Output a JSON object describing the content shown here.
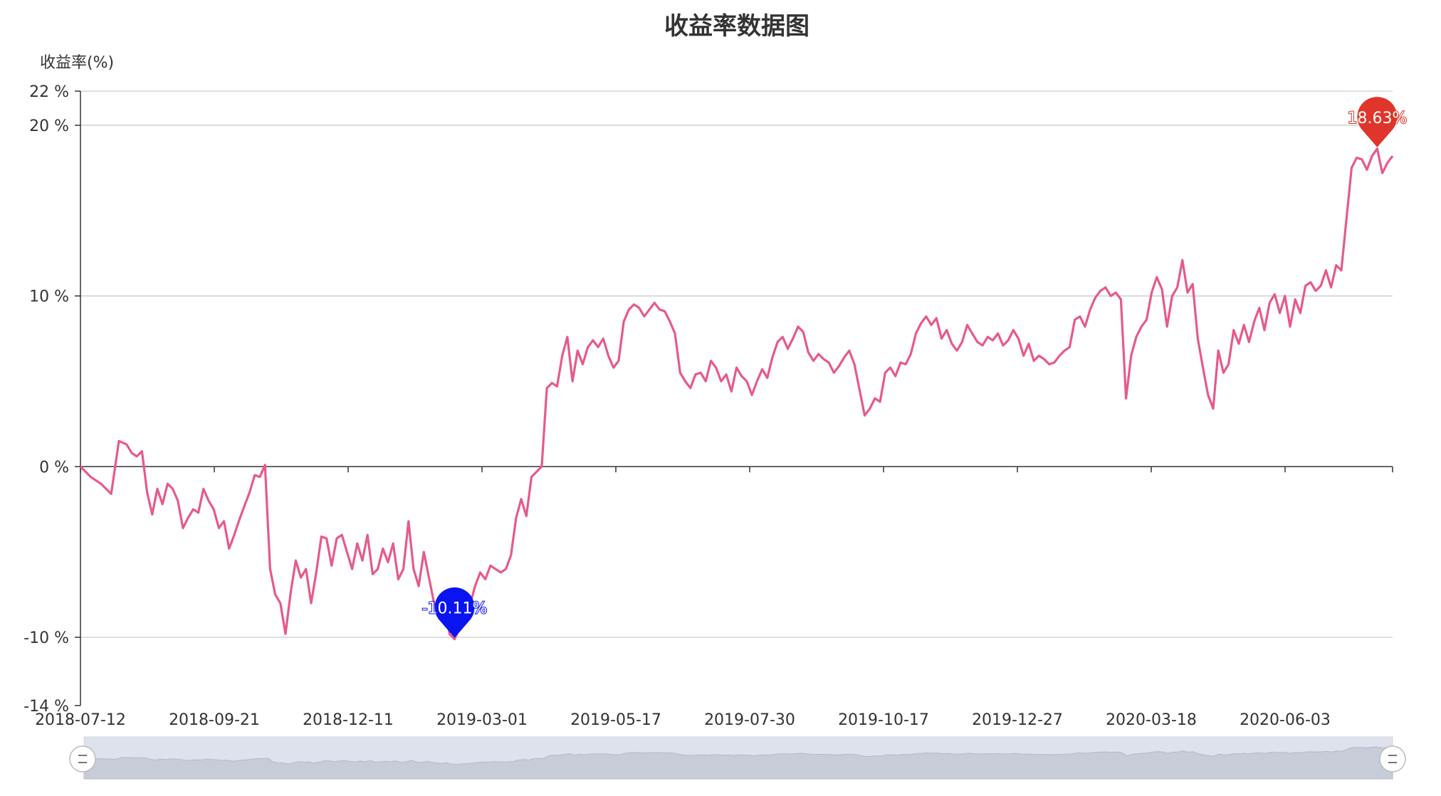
{
  "chart_data": {
    "type": "line",
    "title": "收益率数据图",
    "ylabel": "收益率(%)",
    "xlabel": "",
    "yticks": [
      "22 %",
      "20 %",
      "10 %",
      "0 %",
      "-10 %",
      "-14 %"
    ],
    "ytick_values": [
      22,
      20,
      10,
      0,
      -10,
      -14
    ],
    "ylim": [
      -14,
      22
    ],
    "x_tick_labels": [
      "2018-07-12",
      "2018-09-21",
      "2018-12-11",
      "2019-03-01",
      "2019-05-17",
      "2019-07-30",
      "2019-10-17",
      "2019-12-27",
      "2020-03-18",
      "2020-06-03"
    ],
    "grid": true,
    "series": [
      {
        "color": "#e65a88",
        "points": [
          [
            0,
            0.0
          ],
          [
            2,
            -0.6
          ],
          [
            4,
            -1.0
          ],
          [
            6,
            -1.6
          ],
          [
            7.5,
            1.5
          ],
          [
            9,
            1.3
          ],
          [
            10,
            0.8
          ],
          [
            11,
            0.6
          ],
          [
            12,
            0.9
          ],
          [
            13,
            -1.5
          ],
          [
            14,
            -2.8
          ],
          [
            15,
            -1.3
          ],
          [
            16,
            -2.2
          ],
          [
            17,
            -1.0
          ],
          [
            18,
            -1.3
          ],
          [
            19,
            -2.0
          ],
          [
            20,
            -3.6
          ],
          [
            21,
            -3.0
          ],
          [
            22,
            -2.5
          ],
          [
            23,
            -2.7
          ],
          [
            24,
            -1.3
          ],
          [
            25,
            -2.0
          ],
          [
            26,
            -2.5
          ],
          [
            27,
            -3.6
          ],
          [
            28,
            -3.2
          ],
          [
            29,
            -4.8
          ],
          [
            30,
            -4.0
          ],
          [
            31,
            -3.1
          ],
          [
            32,
            -2.3
          ],
          [
            33,
            -1.5
          ],
          [
            34,
            -0.5
          ],
          [
            35,
            -0.6
          ],
          [
            36,
            0.1
          ],
          [
            37,
            -6.0
          ],
          [
            38,
            -7.5
          ],
          [
            39,
            -8.0
          ],
          [
            40,
            -9.8
          ],
          [
            41,
            -7.4
          ],
          [
            42,
            -5.5
          ],
          [
            43,
            -6.5
          ],
          [
            44,
            -6.0
          ],
          [
            45,
            -8.0
          ],
          [
            46,
            -6.2
          ],
          [
            47,
            -4.1
          ],
          [
            48,
            -4.2
          ],
          [
            49,
            -5.8
          ],
          [
            50,
            -4.2
          ],
          [
            51,
            -4.0
          ],
          [
            52,
            -5.0
          ],
          [
            53,
            -6.0
          ],
          [
            54,
            -4.5
          ],
          [
            55,
            -5.5
          ],
          [
            56,
            -4.0
          ],
          [
            57,
            -6.3
          ],
          [
            58,
            -6.0
          ],
          [
            59,
            -4.8
          ],
          [
            60,
            -5.6
          ],
          [
            61,
            -4.5
          ],
          [
            62,
            -6.6
          ],
          [
            63,
            -6.0
          ],
          [
            64,
            -3.2
          ],
          [
            65,
            -6.0
          ],
          [
            66,
            -7.0
          ],
          [
            67,
            -5.0
          ],
          [
            68,
            -6.5
          ],
          [
            69,
            -8.0
          ],
          [
            70,
            -8.4
          ],
          [
            71,
            -7.5
          ],
          [
            72,
            -9.8
          ],
          [
            73,
            -10.11
          ],
          [
            74,
            -9.4
          ],
          [
            75,
            -8.6
          ],
          [
            76,
            -8.1
          ],
          [
            77,
            -7.0
          ],
          [
            78,
            -6.2
          ],
          [
            79,
            -6.6
          ],
          [
            80,
            -5.8
          ],
          [
            81,
            -6.0
          ],
          [
            82,
            -6.2
          ],
          [
            83,
            -6.0
          ],
          [
            84,
            -5.2
          ],
          [
            85,
            -3.0
          ],
          [
            86,
            -1.9
          ],
          [
            87,
            -2.9
          ],
          [
            88,
            -0.6
          ],
          [
            89,
            -0.3
          ],
          [
            90,
            0.0
          ],
          [
            91,
            4.6
          ],
          [
            92,
            4.9
          ],
          [
            93,
            4.7
          ],
          [
            94,
            6.5
          ],
          [
            95,
            7.6
          ],
          [
            96,
            5.0
          ],
          [
            97,
            6.8
          ],
          [
            98,
            6.0
          ],
          [
            99,
            7.0
          ],
          [
            100,
            7.4
          ],
          [
            101,
            7.0
          ],
          [
            102,
            7.5
          ],
          [
            103,
            6.5
          ],
          [
            104,
            5.8
          ],
          [
            105,
            6.2
          ],
          [
            106,
            8.5
          ],
          [
            107,
            9.2
          ],
          [
            108,
            9.5
          ],
          [
            109,
            9.3
          ],
          [
            110,
            8.8
          ],
          [
            111,
            9.2
          ],
          [
            112,
            9.6
          ],
          [
            113,
            9.2
          ],
          [
            114,
            9.1
          ],
          [
            115,
            8.5
          ],
          [
            116,
            7.8
          ],
          [
            117,
            5.5
          ],
          [
            118,
            5.0
          ],
          [
            119,
            4.6
          ],
          [
            120,
            5.4
          ],
          [
            121,
            5.5
          ],
          [
            122,
            5.0
          ],
          [
            123,
            6.2
          ],
          [
            124,
            5.8
          ],
          [
            125,
            5.0
          ],
          [
            126,
            5.4
          ],
          [
            127,
            4.4
          ],
          [
            128,
            5.8
          ],
          [
            129,
            5.3
          ],
          [
            130,
            5.0
          ],
          [
            131,
            4.2
          ],
          [
            132,
            5.0
          ],
          [
            133,
            5.7
          ],
          [
            134,
            5.2
          ],
          [
            135,
            6.4
          ],
          [
            136,
            7.3
          ],
          [
            137,
            7.6
          ],
          [
            138,
            6.9
          ],
          [
            139,
            7.5
          ],
          [
            140,
            8.2
          ],
          [
            141,
            7.9
          ],
          [
            142,
            6.7
          ],
          [
            143,
            6.2
          ],
          [
            144,
            6.6
          ],
          [
            145,
            6.3
          ],
          [
            146,
            6.1
          ],
          [
            147,
            5.5
          ],
          [
            148,
            5.9
          ],
          [
            149,
            6.4
          ],
          [
            150,
            6.8
          ],
          [
            151,
            6.0
          ],
          [
            152,
            4.5
          ],
          [
            153,
            3.0
          ],
          [
            154,
            3.4
          ],
          [
            155,
            4.0
          ],
          [
            156,
            3.8
          ],
          [
            157,
            5.5
          ],
          [
            158,
            5.8
          ],
          [
            159,
            5.3
          ],
          [
            160,
            6.1
          ],
          [
            161,
            6.0
          ],
          [
            162,
            6.6
          ],
          [
            163,
            7.8
          ],
          [
            164,
            8.4
          ],
          [
            165,
            8.8
          ],
          [
            166,
            8.3
          ],
          [
            167,
            8.7
          ],
          [
            168,
            7.5
          ],
          [
            169,
            8.0
          ],
          [
            170,
            7.2
          ],
          [
            171,
            6.8
          ],
          [
            172,
            7.3
          ],
          [
            173,
            8.3
          ],
          [
            174,
            7.8
          ],
          [
            175,
            7.3
          ],
          [
            176,
            7.1
          ],
          [
            177,
            7.6
          ],
          [
            178,
            7.4
          ],
          [
            179,
            7.8
          ],
          [
            180,
            7.1
          ],
          [
            181,
            7.4
          ],
          [
            182,
            8.0
          ],
          [
            183,
            7.5
          ],
          [
            184,
            6.5
          ],
          [
            185,
            7.2
          ],
          [
            186,
            6.2
          ],
          [
            187,
            6.5
          ],
          [
            188,
            6.3
          ],
          [
            189,
            6.0
          ],
          [
            190,
            6.1
          ],
          [
            191,
            6.5
          ],
          [
            192,
            6.8
          ],
          [
            193,
            7.0
          ],
          [
            194,
            8.6
          ],
          [
            195,
            8.8
          ],
          [
            196,
            8.2
          ],
          [
            197,
            9.2
          ],
          [
            198,
            9.9
          ],
          [
            199,
            10.3
          ],
          [
            200,
            10.5
          ],
          [
            201,
            10.0
          ],
          [
            202,
            10.2
          ],
          [
            203,
            9.8
          ],
          [
            204,
            4.0
          ],
          [
            205,
            6.5
          ],
          [
            206,
            7.6
          ],
          [
            207,
            8.2
          ],
          [
            208,
            8.6
          ],
          [
            209,
            10.2
          ],
          [
            210,
            11.1
          ],
          [
            211,
            10.4
          ],
          [
            212,
            8.2
          ],
          [
            213,
            10.0
          ],
          [
            214,
            10.5
          ],
          [
            215,
            12.1
          ],
          [
            216,
            10.2
          ],
          [
            217,
            10.7
          ],
          [
            218,
            7.5
          ],
          [
            219,
            5.8
          ],
          [
            220,
            4.2
          ],
          [
            221,
            3.4
          ],
          [
            222,
            6.8
          ],
          [
            223,
            5.5
          ],
          [
            224,
            6.0
          ],
          [
            225,
            8.0
          ],
          [
            226,
            7.2
          ],
          [
            227,
            8.3
          ],
          [
            228,
            7.3
          ],
          [
            229,
            8.5
          ],
          [
            230,
            9.3
          ],
          [
            231,
            8.0
          ],
          [
            232,
            9.6
          ],
          [
            233,
            10.1
          ],
          [
            234,
            9.0
          ],
          [
            235,
            10.0
          ],
          [
            236,
            8.2
          ],
          [
            237,
            9.8
          ],
          [
            238,
            9.0
          ],
          [
            239,
            10.6
          ],
          [
            240,
            10.8
          ],
          [
            241,
            10.3
          ],
          [
            242,
            10.6
          ],
          [
            243,
            11.5
          ],
          [
            244,
            10.5
          ],
          [
            245,
            11.8
          ],
          [
            246,
            11.5
          ],
          [
            247,
            14.5
          ],
          [
            248,
            17.5
          ],
          [
            249,
            18.1
          ],
          [
            250,
            18.0
          ],
          [
            251,
            17.4
          ],
          [
            252,
            18.2
          ],
          [
            253,
            18.63
          ],
          [
            254,
            17.2
          ],
          [
            255,
            17.8
          ],
          [
            256,
            18.2
          ]
        ]
      }
    ],
    "markers": [
      {
        "label": "18.63%",
        "type": "max",
        "x": 253,
        "y": 18.63,
        "color": "#e0352b"
      },
      {
        "label": "-10.11%",
        "type": "min",
        "x": 73,
        "y": -10.11,
        "color": "#0a14f0"
      }
    ],
    "dataZoom": {
      "start": 0,
      "end": 100
    }
  }
}
